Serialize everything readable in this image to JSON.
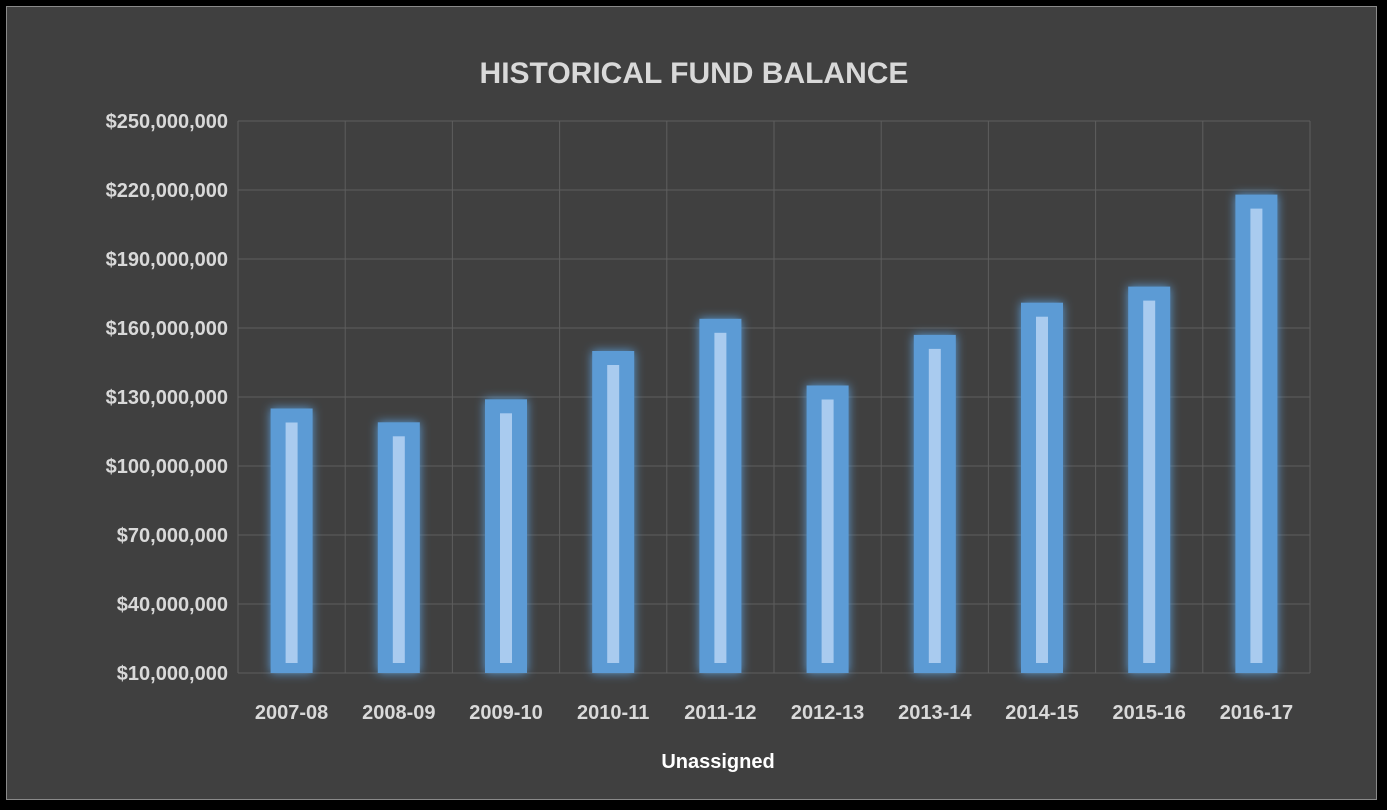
{
  "chart_data": {
    "type": "bar",
    "title": "HISTORICAL FUND BALANCE",
    "xlabel": "Unassigned",
    "ylabel": "",
    "categories": [
      "2007-08",
      "2008-09",
      "2009-10",
      "2010-11",
      "2011-12",
      "2012-13",
      "2013-14",
      "2014-15",
      "2015-16",
      "2016-17"
    ],
    "values": [
      125000000,
      119000000,
      129000000,
      150000000,
      164000000,
      135000000,
      157000000,
      171000000,
      178000000,
      218000000
    ],
    "ylim": [
      10000000,
      250000000
    ],
    "yticks": [
      10000000,
      40000000,
      70000000,
      100000000,
      130000000,
      160000000,
      190000000,
      220000000,
      250000000
    ],
    "ytick_labels": [
      "$10,000,000",
      "$40,000,000",
      "$70,000,000",
      "$100,000,000",
      "$130,000,000",
      "$160,000,000",
      "$190,000,000",
      "$220,000,000",
      "$250,000,000"
    ],
    "grid": true,
    "legend": "none",
    "colors": {
      "bar": "#5b9bd5",
      "bar_highlight": "#a9cbef",
      "background": "#404040",
      "grid": "#5e5e5e",
      "text": "#d9d9d9"
    }
  }
}
